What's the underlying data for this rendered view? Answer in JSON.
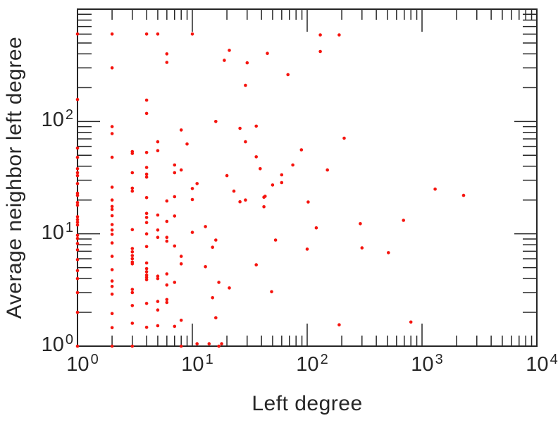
{
  "figure": {
    "background": "#ffffff",
    "axis_color": "#262626",
    "text_color": "#262626"
  },
  "chart_data": {
    "type": "scatter",
    "title": "",
    "xlabel": "Left degree",
    "ylabel": "Average neighbor left degree",
    "x_scale": "log",
    "y_scale": "log",
    "xlim": [
      1,
      10000
    ],
    "ylim": [
      1,
      1000
    ],
    "grid": false,
    "legend": null,
    "marker": {
      "color": "#f5140e",
      "size": 4.6,
      "shape": "dot"
    },
    "x_ticks": [
      {
        "value": 1,
        "base": "10",
        "exp": "0"
      },
      {
        "value": 10,
        "base": "10",
        "exp": "1"
      },
      {
        "value": 100,
        "base": "10",
        "exp": "2"
      },
      {
        "value": 1000,
        "base": "10",
        "exp": "3"
      },
      {
        "value": 10000,
        "base": "10",
        "exp": "4"
      }
    ],
    "y_ticks": [
      {
        "value": 1,
        "base": "10",
        "exp": "0"
      },
      {
        "value": 10,
        "base": "10",
        "exp": "1"
      },
      {
        "value": 100,
        "base": "10",
        "exp": "2"
      }
    ],
    "points": [
      [
        1,
        600
      ],
      [
        1,
        157
      ],
      [
        1,
        58
      ],
      [
        1,
        48
      ],
      [
        1,
        38
      ],
      [
        1,
        35
      ],
      [
        1,
        33
      ],
      [
        1,
        28
      ],
      [
        1,
        23
      ],
      [
        1,
        22
      ],
      [
        1,
        19
      ],
      [
        1,
        18
      ],
      [
        1,
        14.2
      ],
      [
        1,
        13.4
      ],
      [
        1,
        12.7
      ],
      [
        1,
        12
      ],
      [
        1,
        9.7
      ],
      [
        1,
        9.1
      ],
      [
        1,
        8.2
      ],
      [
        1,
        7.2
      ],
      [
        1,
        5.9
      ],
      [
        1,
        4.7
      ],
      [
        1,
        4
      ],
      [
        1,
        3
      ],
      [
        1,
        2
      ],
      [
        1,
        1
      ],
      [
        2,
        600
      ],
      [
        2,
        300
      ],
      [
        2,
        90
      ],
      [
        2,
        78
      ],
      [
        2,
        48
      ],
      [
        2,
        26
      ],
      [
        2,
        20
      ],
      [
        2,
        17.5
      ],
      [
        2,
        16.5
      ],
      [
        2,
        14.5
      ],
      [
        2,
        12.1
      ],
      [
        2,
        10.8
      ],
      [
        2,
        9.9
      ],
      [
        2,
        8.3
      ],
      [
        2,
        6.3
      ],
      [
        2,
        4.8
      ],
      [
        2,
        3.8
      ],
      [
        2,
        3.4
      ],
      [
        2,
        2.9
      ],
      [
        2,
        1.95
      ],
      [
        2,
        1.46
      ],
      [
        2,
        1
      ],
      [
        3,
        54
      ],
      [
        3,
        52
      ],
      [
        3,
        35
      ],
      [
        3,
        25.5
      ],
      [
        3,
        24
      ],
      [
        3,
        10.9
      ],
      [
        3,
        7.4
      ],
      [
        3,
        6.9
      ],
      [
        3,
        6.4
      ],
      [
        3,
        6
      ],
      [
        3,
        5.6
      ],
      [
        3,
        5.4
      ],
      [
        3,
        3.2
      ],
      [
        3,
        3
      ],
      [
        3,
        2.3
      ],
      [
        3,
        1.6
      ],
      [
        3,
        1
      ],
      [
        4,
        600
      ],
      [
        4,
        155
      ],
      [
        4,
        118
      ],
      [
        4,
        53
      ],
      [
        4,
        39
      ],
      [
        4,
        34
      ],
      [
        4,
        32
      ],
      [
        4,
        21
      ],
      [
        4,
        15.2
      ],
      [
        4,
        14
      ],
      [
        4,
        12.6
      ],
      [
        4,
        10
      ],
      [
        4,
        7.7
      ],
      [
        4,
        5.5
      ],
      [
        4,
        4.9
      ],
      [
        4,
        4.6
      ],
      [
        4,
        4.3
      ],
      [
        4,
        4.1
      ],
      [
        4,
        3.9
      ],
      [
        4,
        2.4
      ],
      [
        4,
        1.47
      ],
      [
        5,
        600
      ],
      [
        5,
        66
      ],
      [
        5,
        55
      ],
      [
        5,
        14.7
      ],
      [
        5,
        10.8
      ],
      [
        5,
        9.3
      ],
      [
        5,
        4.2
      ],
      [
        5,
        4
      ],
      [
        5,
        2.5
      ],
      [
        5,
        2.1
      ],
      [
        5,
        1.52
      ],
      [
        6,
        400
      ],
      [
        6,
        336
      ],
      [
        6,
        19.6
      ],
      [
        6,
        12.9
      ],
      [
        6,
        9.3
      ],
      [
        6,
        8.6
      ],
      [
        6,
        4.4
      ],
      [
        6,
        3.5
      ],
      [
        6,
        2.6
      ],
      [
        6,
        2.45
      ],
      [
        7,
        41
      ],
      [
        7,
        35
      ],
      [
        7,
        21.4
      ],
      [
        7,
        14.4
      ],
      [
        7,
        7.8
      ],
      [
        7,
        3.7
      ],
      [
        7,
        1.5
      ],
      [
        8,
        84
      ],
      [
        8,
        37
      ],
      [
        8,
        6.3
      ],
      [
        8,
        5.4
      ],
      [
        8,
        1.7
      ],
      [
        8,
        1
      ],
      [
        9,
        63
      ],
      [
        10,
        600
      ],
      [
        10,
        25.3
      ],
      [
        10,
        20.2
      ],
      [
        10,
        10.3
      ],
      [
        11,
        28
      ],
      [
        11,
        1.05
      ],
      [
        13,
        11.6
      ],
      [
        13,
        5.1
      ],
      [
        14,
        1.05
      ],
      [
        15,
        7.6
      ],
      [
        15,
        2.7
      ],
      [
        16,
        100
      ],
      [
        16,
        8.8
      ],
      [
        16,
        1.79
      ],
      [
        17,
        3.7
      ],
      [
        17,
        1
      ],
      [
        18,
        1.05
      ],
      [
        19,
        350
      ],
      [
        20,
        33
      ],
      [
        21,
        430
      ],
      [
        21,
        3.3
      ],
      [
        23,
        24
      ],
      [
        26,
        87
      ],
      [
        26,
        19.3
      ],
      [
        29,
        210
      ],
      [
        29,
        66
      ],
      [
        29,
        20
      ],
      [
        30,
        333
      ],
      [
        36,
        91
      ],
      [
        36,
        48.5
      ],
      [
        36,
        5.3
      ],
      [
        39,
        38
      ],
      [
        42,
        21.2
      ],
      [
        42,
        17.4
      ],
      [
        43,
        21.6
      ],
      [
        45,
        404
      ],
      [
        49,
        3.05
      ],
      [
        50,
        27.2
      ],
      [
        53,
        8.8
      ],
      [
        60,
        33.5
      ],
      [
        60,
        28.6
      ],
      [
        68,
        261
      ],
      [
        75,
        41
      ],
      [
        89,
        56
      ],
      [
        100,
        7.3
      ],
      [
        102,
        19.2
      ],
      [
        120,
        11.3
      ],
      [
        130,
        590
      ],
      [
        130,
        420
      ],
      [
        150,
        37
      ],
      [
        190,
        590
      ],
      [
        190,
        1.55
      ],
      [
        210,
        71
      ],
      [
        290,
        12.3
      ],
      [
        300,
        7.5
      ],
      [
        510,
        6.8
      ],
      [
        690,
        13.2
      ],
      [
        800,
        1.64
      ],
      [
        1300,
        25
      ],
      [
        2300,
        22
      ]
    ]
  }
}
